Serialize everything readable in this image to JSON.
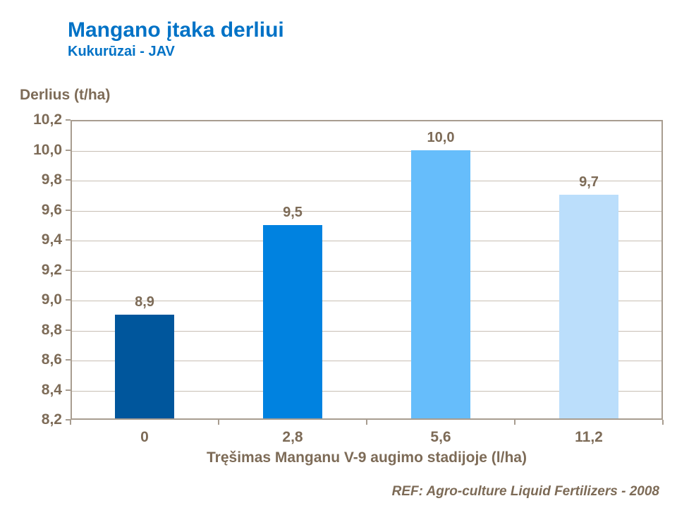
{
  "header": {
    "title": "Mangano įtaka derliui",
    "subtitle": "Kukurūzai - JAV"
  },
  "chart_data": {
    "type": "bar",
    "title": "Mangano įtaka derliui",
    "subtitle": "Kukurūzai - JAV",
    "categories": [
      "0",
      "2,8",
      "5,6",
      "11,2"
    ],
    "values": [
      8.9,
      9.5,
      10.0,
      9.7
    ],
    "value_labels": [
      "8,9",
      "9,5",
      "10,0",
      "9,7"
    ],
    "bar_colors": [
      "#00569C",
      "#0082E0",
      "#66BDFB",
      "#BBDEFB"
    ],
    "xlabel": "Tręšimas Manganu V-9 augimo stadijoje (l/ha)",
    "ylabel": "Derlius (t/ha)",
    "ylim": [
      8.2,
      10.2
    ],
    "ytick_step": 0.2,
    "ytick_labels": [
      "8,2",
      "8,4",
      "8,6",
      "8,8",
      "9,0",
      "9,2",
      "9,4",
      "9,6",
      "9,8",
      "10,0",
      "10,2"
    ],
    "grid": true,
    "legend_position": "none",
    "decimal_separator": ","
  },
  "footer": {
    "reference": "REF: Agro-culture Liquid Fertilizers - 2008"
  },
  "colors": {
    "title_blue": "#0072C6",
    "text_brown": "#7D6B57",
    "axis_border": "#A89D90",
    "gridline": "#C8BFB4",
    "background": "#FFFFFF"
  }
}
